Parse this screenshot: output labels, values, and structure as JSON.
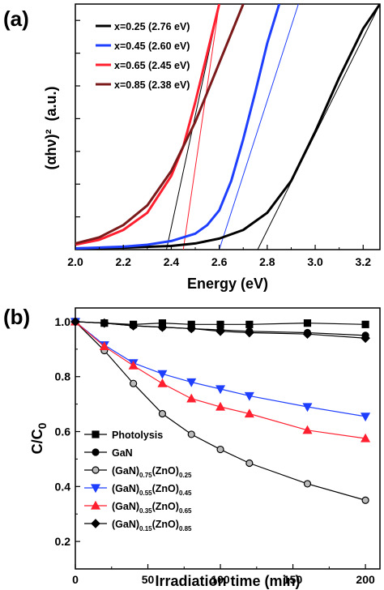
{
  "chart_data": [
    {
      "panel": "(a)",
      "type": "line",
      "xlabel": "Energy (eV)",
      "ylabel": "(αhν)²",
      "ylabel_unit": "(a.u.)",
      "xlim": [
        2.0,
        3.27
      ],
      "ylim": [
        0,
        1
      ],
      "xticks": [
        "2.0",
        "2.2",
        "2.4",
        "2.6",
        "2.8",
        "3.0",
        "3.2"
      ],
      "legend_position": "top-left",
      "series": [
        {
          "name": "x=0.25 (2.76 eV)",
          "color": "#000000",
          "x": [
            2.0,
            2.2,
            2.4,
            2.5,
            2.6,
            2.7,
            2.8,
            2.9,
            3.0,
            3.1,
            3.2,
            3.27
          ],
          "y": [
            0.005,
            0.008,
            0.015,
            0.025,
            0.045,
            0.08,
            0.15,
            0.28,
            0.48,
            0.7,
            0.9,
            1.0
          ]
        },
        {
          "name": "x=0.45 (2.60 eV)",
          "color": "#1f3fff",
          "x": [
            2.0,
            2.2,
            2.3,
            2.4,
            2.5,
            2.55,
            2.6,
            2.65,
            2.7,
            2.75,
            2.8,
            2.85
          ],
          "y": [
            0.005,
            0.012,
            0.02,
            0.035,
            0.065,
            0.1,
            0.16,
            0.28,
            0.45,
            0.64,
            0.84,
            1.0
          ]
        },
        {
          "name": "x=0.65 (2.45 eV)",
          "color": "#ff1f2f",
          "x": [
            2.0,
            2.1,
            2.2,
            2.3,
            2.4,
            2.45,
            2.5,
            2.55,
            2.6
          ],
          "y": [
            0.02,
            0.04,
            0.08,
            0.15,
            0.3,
            0.42,
            0.6,
            0.8,
            1.0
          ]
        },
        {
          "name": "x=0.85 (2.38 eV)",
          "color": "#7a1a1a",
          "x": [
            2.0,
            2.1,
            2.2,
            2.3,
            2.4,
            2.5,
            2.6,
            2.7
          ],
          "y": [
            0.025,
            0.05,
            0.1,
            0.18,
            0.32,
            0.52,
            0.76,
            1.0
          ]
        }
      ],
      "tangents": [
        {
          "color": "#000000",
          "x": [
            2.76,
            3.27
          ],
          "y": [
            0,
            1.0
          ]
        },
        {
          "color": "#1f3fff",
          "x": [
            2.6,
            2.93
          ],
          "y": [
            0,
            1.0
          ]
        },
        {
          "color": "#ff1f2f",
          "x": [
            2.45,
            2.6
          ],
          "y": [
            0,
            1.0
          ]
        },
        {
          "color": "#000000",
          "x": [
            2.38,
            2.6
          ],
          "y": [
            0,
            1.0
          ]
        }
      ]
    },
    {
      "panel": "(b)",
      "type": "line",
      "xlabel": "Irradiation time (min)",
      "ylabel": "C/C",
      "ylabel_sub": "0",
      "xlim": [
        0,
        210
      ],
      "ylim": [
        0.1,
        1.05
      ],
      "xticks": [
        "0",
        "50",
        "100",
        "150",
        "200"
      ],
      "yticks": [
        "0.2",
        "0.4",
        "0.6",
        "0.8",
        "1.0"
      ],
      "legend_position": "bottom-left",
      "series": [
        {
          "name": "Photolysis",
          "legend_parts": [],
          "color": "#000000",
          "fill": "#000000",
          "marker": "square",
          "x": [
            0,
            20,
            40,
            60,
            80,
            100,
            120,
            160,
            200
          ],
          "y": [
            1.0,
            0.995,
            0.99,
            0.995,
            0.99,
            0.99,
            0.99,
            0.995,
            0.99
          ]
        },
        {
          "name": "GaN",
          "legend_parts": [],
          "color": "#000000",
          "fill": "#000000",
          "marker": "circle",
          "x": [
            0,
            20,
            40,
            60,
            80,
            100,
            120,
            160,
            200
          ],
          "y": [
            1.0,
            0.995,
            0.985,
            0.98,
            0.975,
            0.97,
            0.965,
            0.96,
            0.95
          ]
        },
        {
          "name": "(GaN)0.75(ZnO)0.25",
          "legend_parts": [
            "(GaN)",
            "0.75",
            "(ZnO)",
            "0.25"
          ],
          "color": "#000000",
          "fill": "#bbbbbb",
          "marker": "circle",
          "x": [
            0,
            20,
            40,
            60,
            80,
            100,
            120,
            160,
            200
          ],
          "y": [
            1.0,
            0.895,
            0.775,
            0.665,
            0.59,
            0.535,
            0.485,
            0.41,
            0.35
          ]
        },
        {
          "name": "(GaN)0.55(ZnO)0.45",
          "legend_parts": [
            "(GaN)",
            "0.55",
            "(ZnO)",
            "0.45"
          ],
          "color": "#1f3fff",
          "fill": "#1f3fff",
          "marker": "triangle-down",
          "x": [
            0,
            20,
            40,
            60,
            80,
            100,
            120,
            160,
            200
          ],
          "y": [
            1.0,
            0.915,
            0.85,
            0.81,
            0.78,
            0.755,
            0.73,
            0.69,
            0.655
          ]
        },
        {
          "name": "(GaN)0.35(ZnO)0.65",
          "legend_parts": [
            "(GaN)",
            "0.35",
            "(ZnO)",
            "0.65"
          ],
          "color": "#ff1f2f",
          "fill": "#ff1f2f",
          "marker": "triangle-up",
          "x": [
            0,
            20,
            40,
            60,
            80,
            100,
            120,
            160,
            200
          ],
          "y": [
            1.0,
            0.91,
            0.84,
            0.775,
            0.72,
            0.69,
            0.665,
            0.605,
            0.575
          ]
        },
        {
          "name": "(GaN)0.15(ZnO)0.85",
          "legend_parts": [
            "(GaN)",
            "0.15",
            "(ZnO)",
            "0.85"
          ],
          "color": "#000000",
          "fill": "#000000",
          "marker": "diamond",
          "x": [
            0,
            20,
            40,
            60,
            80,
            100,
            120,
            160,
            200
          ],
          "y": [
            1.0,
            0.995,
            0.985,
            0.98,
            0.975,
            0.965,
            0.96,
            0.955,
            0.94
          ]
        }
      ]
    }
  ]
}
